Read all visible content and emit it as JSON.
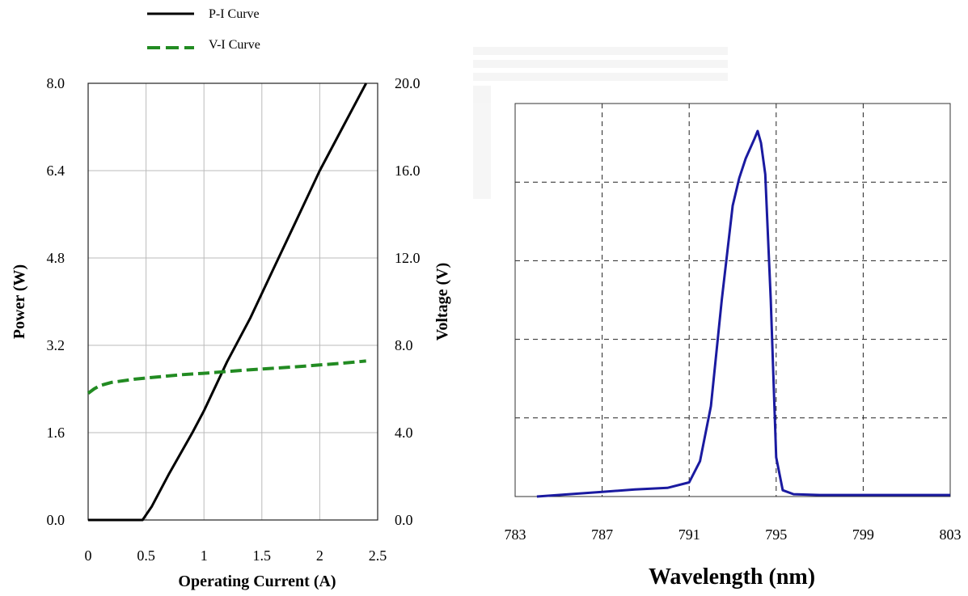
{
  "chart_data": [
    {
      "type": "line",
      "title": "",
      "xlabel": "Operating Current (A)",
      "ylabel_left": "Power (W)",
      "ylabel_right": "Voltage (V)",
      "xlim": [
        0,
        2.5
      ],
      "ylim_left": [
        0,
        8.0
      ],
      "ylim_right": [
        0,
        20.0
      ],
      "x_ticks": [
        "0",
        "0.5",
        "1",
        "1.5",
        "2",
        "2.5"
      ],
      "y_ticks_left": [
        "0.0",
        "1.6",
        "3.2",
        "4.8",
        "6.4",
        "8.0"
      ],
      "y_ticks_right": [
        "0.0",
        "4.0",
        "8.0",
        "12.0",
        "16.0",
        "20.0"
      ],
      "grid": true,
      "legend": {
        "position": "top-left, above plot",
        "entries": [
          "P-I Curve",
          "V-I Curve"
        ]
      },
      "series": [
        {
          "name": "P-I Curve",
          "axis": "left",
          "color": "#000000",
          "style": "solid",
          "x": [
            0,
            0.47,
            0.55,
            0.7,
            0.9,
            1.0,
            1.2,
            1.4,
            1.6,
            1.8,
            2.0,
            2.2,
            2.4
          ],
          "y": [
            0,
            0,
            0.25,
            0.85,
            1.6,
            2.0,
            2.9,
            3.7,
            4.6,
            5.5,
            6.4,
            7.2,
            8.0
          ]
        },
        {
          "name": "V-I Curve",
          "axis": "right",
          "color": "#228B22",
          "style": "dashed",
          "x": [
            0,
            0.05,
            0.1,
            0.2,
            0.4,
            0.6,
            0.8,
            1.0,
            1.2,
            1.4,
            1.6,
            1.8,
            2.0,
            2.2,
            2.4
          ],
          "y": [
            5.8,
            6.0,
            6.15,
            6.3,
            6.45,
            6.55,
            6.65,
            6.72,
            6.8,
            6.88,
            6.95,
            7.02,
            7.1,
            7.18,
            7.28
          ]
        }
      ]
    },
    {
      "type": "line",
      "title": "",
      "xlabel": "Wavelength (nm)",
      "ylabel": "",
      "xlim": [
        783,
        803
      ],
      "ylim": [
        0,
        5
      ],
      "x_ticks": [
        "783",
        "787",
        "791",
        "795",
        "799",
        "803"
      ],
      "grid": true,
      "grid_style": "dashed",
      "series": [
        {
          "color": "#1a1aa0",
          "x": [
            784.0,
            785.5,
            787.0,
            788.5,
            790.0,
            791.0,
            791.5,
            792.0,
            792.5,
            793.0,
            793.3,
            793.6,
            794.0,
            794.15,
            794.3,
            794.5,
            794.75,
            795.0,
            795.3,
            795.8,
            797.0,
            799.0,
            801.0,
            803.0
          ],
          "y": [
            0.0,
            0.03,
            0.06,
            0.09,
            0.11,
            0.18,
            0.45,
            1.15,
            2.5,
            3.7,
            4.05,
            4.3,
            4.55,
            4.65,
            4.5,
            4.1,
            2.5,
            0.5,
            0.08,
            0.03,
            0.02,
            0.02,
            0.02,
            0.02
          ]
        }
      ]
    }
  ],
  "legend_icons": {
    "pi_sample": "solid-black-line",
    "vi_sample": "dashed-green-line"
  }
}
